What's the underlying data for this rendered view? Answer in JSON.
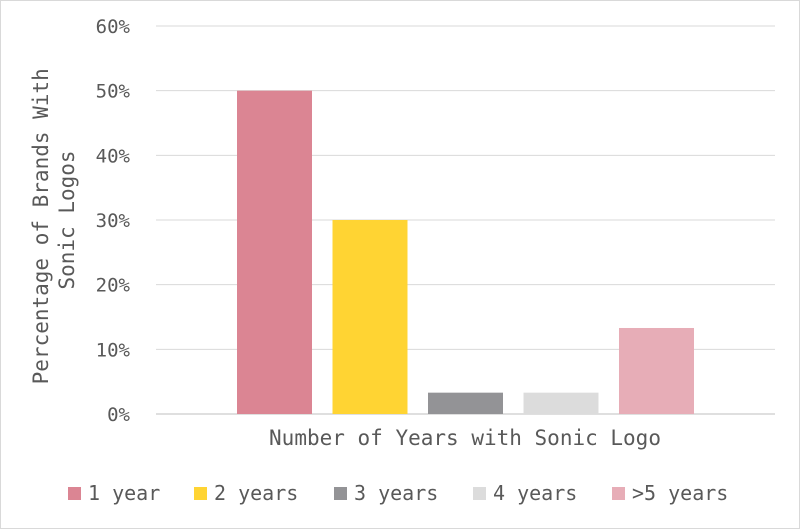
{
  "chart_data": {
    "type": "bar",
    "title": "",
    "xlabel": "Number of Years with Sonic Logo",
    "ylabel_lines": [
      "Percentage of Brands With",
      "Sonic Logos"
    ],
    "ylim": [
      0,
      60
    ],
    "yticks": [
      0,
      10,
      20,
      30,
      40,
      50,
      60
    ],
    "ytick_labels": [
      "0%",
      "10%",
      "20%",
      "30%",
      "40%",
      "50%",
      "60%"
    ],
    "grid": true,
    "legend_position": "bottom",
    "series": [
      {
        "name": "1 year",
        "value": 50,
        "color": "#db8593"
      },
      {
        "name": "2 years",
        "value": 30,
        "color": "#ffd433"
      },
      {
        "name": "3 years",
        "value": 3.3,
        "color": "#939396"
      },
      {
        "name": "4 years",
        "value": 3.3,
        "color": "#dcdcdc"
      },
      {
        "name": ">5 years",
        "value": 13.3,
        "color": "#e7adb7"
      }
    ]
  }
}
